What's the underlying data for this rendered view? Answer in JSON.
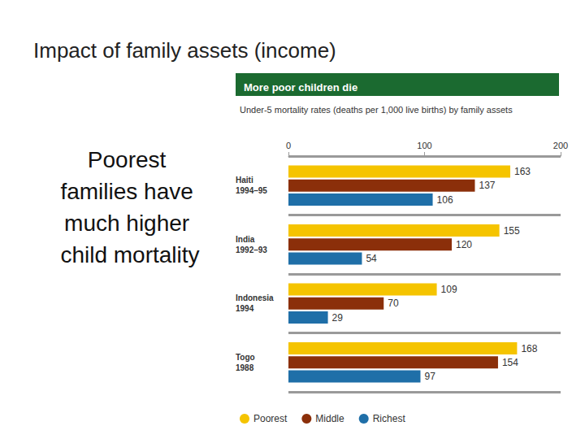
{
  "slide": {
    "title": "Impact of family assets (income)",
    "text": "Poorest families have much higher child mortality"
  },
  "chart_data": {
    "type": "bar",
    "orientation": "horizontal",
    "title": "More poor children die",
    "subtitle": "Under-5 mortality rates (deaths per 1,000 live births) by family assets",
    "categories": [
      "Haiti\n1994–95",
      "India\n1992–93",
      "Indonesia\n1994",
      "Togo\n1988"
    ],
    "series": [
      {
        "name": "Poorest",
        "color": "#f5c400",
        "values": [
          163,
          155,
          109,
          168
        ]
      },
      {
        "name": "Middle",
        "color": "#8b2f0a",
        "values": [
          137,
          120,
          70,
          154
        ]
      },
      {
        "name": "Richest",
        "color": "#1f6fa8",
        "values": [
          106,
          54,
          29,
          97
        ]
      }
    ],
    "xlim": [
      0,
      200
    ],
    "xticks": [
      0,
      100,
      200
    ],
    "data_labels": true,
    "grid": false,
    "legend": "bottom"
  }
}
